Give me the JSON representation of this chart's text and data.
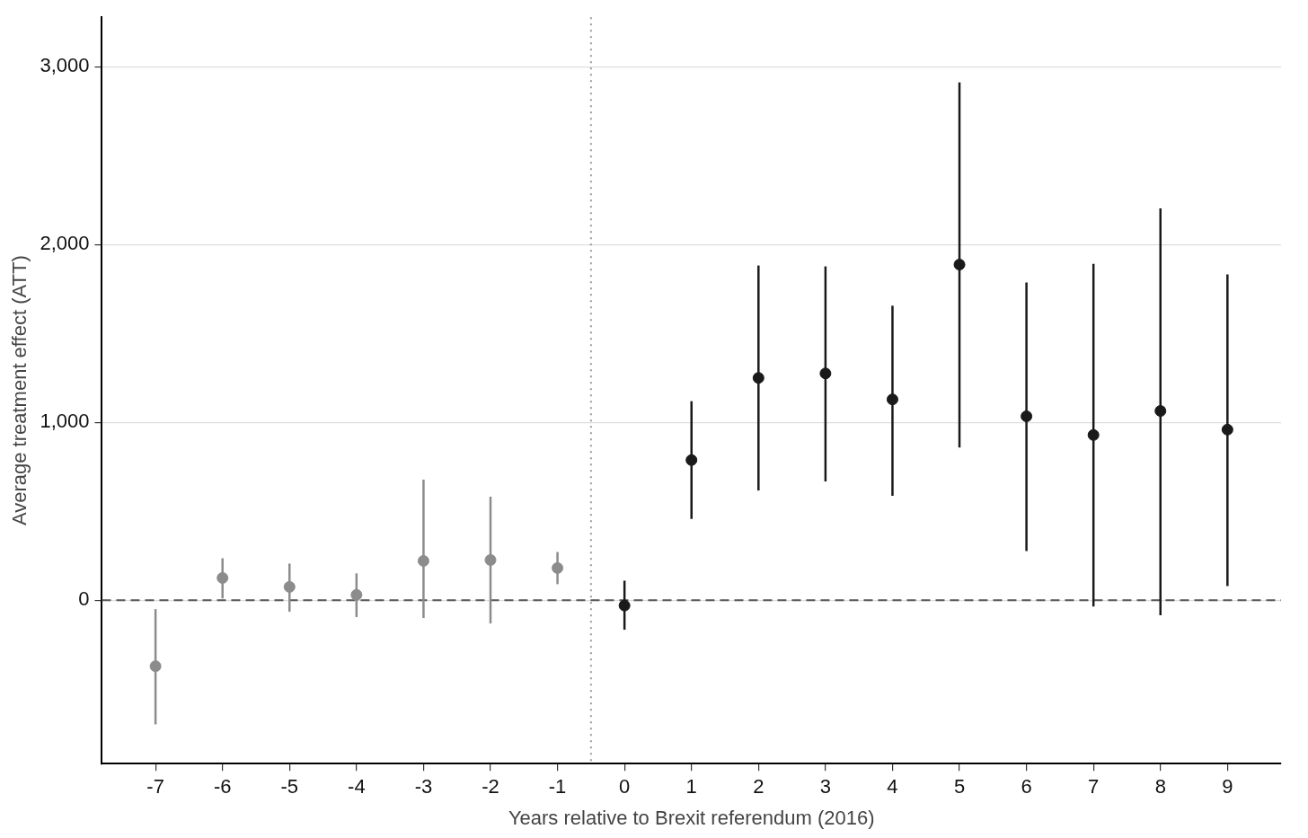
{
  "chart_data": {
    "type": "scatter",
    "xlabel": "Years relative to Brexit referendum (2016)",
    "ylabel": "Average treatment effect (ATT)",
    "xlim": [
      -7.8,
      9.8
    ],
    "xticks": [
      -7,
      -6,
      -5,
      -4,
      -3,
      -2,
      -1,
      0,
      1,
      2,
      3,
      4,
      5,
      6,
      7,
      8,
      9
    ],
    "ylim": [
      -919,
      3278
    ],
    "yticks": [
      {
        "value": 0,
        "label": "0"
      },
      {
        "value": 1000,
        "label": "1,000"
      },
      {
        "value": 2000,
        "label": "2,000"
      },
      {
        "value": 3000,
        "label": "3,000"
      }
    ],
    "grid": "y",
    "legend": false,
    "marker": "circle",
    "series": [
      {
        "color": "#8c8c8c",
        "x": [
          -7,
          -6,
          -5,
          -4,
          -3,
          -2,
          -1
        ],
        "values": [
          -371,
          125,
          75,
          30,
          221,
          226,
          181
        ],
        "errors": [
          [
            -698,
            -50
          ],
          [
            10,
            236
          ],
          [
            -65,
            206
          ],
          [
            -95,
            151
          ],
          [
            -100,
            678
          ],
          [
            -131,
            582
          ],
          [
            90,
            271
          ]
        ]
      },
      {
        "color": "#1a1a1a",
        "x": [
          0,
          1,
          2,
          3,
          4,
          5,
          6,
          7,
          8,
          9
        ],
        "values": [
          -30,
          788,
          1250,
          1275,
          1129,
          1887,
          1034,
          929,
          1064,
          959
        ],
        "errors": [
          [
            -166,
            110
          ],
          [
            457,
            1119
          ],
          [
            617,
            1882
          ],
          [
            668,
            1877
          ],
          [
            587,
            1656
          ],
          [
            858,
            2911
          ],
          [
            276,
            1787
          ],
          [
            -35,
            1892
          ],
          [
            -85,
            2203
          ],
          [
            80,
            1832
          ]
        ]
      }
    ],
    "ref_lines": [
      {
        "axis": "x",
        "value": -0.5,
        "color": "#999999",
        "line_style": "dotted"
      },
      {
        "axis": "y",
        "value": 0,
        "color": "#555555",
        "line_style": "dashed"
      }
    ]
  }
}
